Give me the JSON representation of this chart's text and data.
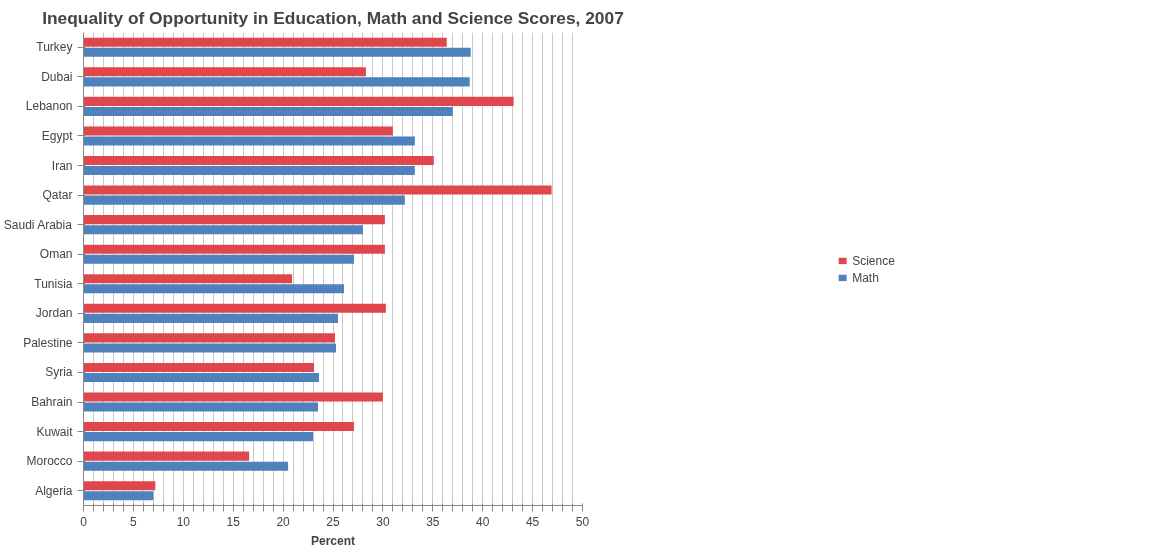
{
  "chart_data": {
    "type": "bar",
    "orientation": "horizontal",
    "title": "Inequality of Opportunity in Education, Math and Science Scores, 2007",
    "xlabel": "Percent",
    "categories": [
      "Turkey",
      "Dubai",
      "Lebanon",
      "Egypt",
      "Iran",
      "Qatar",
      "Saudi Arabia",
      "Oman",
      "Tunisia",
      "Jordan",
      "Palestine",
      "Syria",
      "Bahrain",
      "Kuwait",
      "Morocco",
      "Algeria"
    ],
    "series": [
      {
        "name": "Science",
        "color": "#e0474c",
        "values": [
          36.4,
          28.3,
          43.1,
          31.0,
          35.1,
          46.9,
          30.2,
          30.2,
          20.9,
          30.3,
          25.2,
          23.1,
          30.0,
          27.1,
          16.6,
          7.2
        ]
      },
      {
        "name": "Math",
        "color": "#4f81bd",
        "values": [
          38.8,
          38.7,
          37.0,
          33.2,
          33.2,
          32.2,
          28.0,
          27.1,
          26.1,
          25.5,
          25.3,
          23.6,
          23.5,
          23.0,
          20.5,
          7.0
        ]
      }
    ],
    "xlim": [
      0,
      50
    ],
    "xticks": [
      0,
      {
        "value": 1,
        "label": null
      },
      {
        "value": 2,
        "label": null
      },
      {
        "value": 3,
        "label": null
      },
      {
        "value": 4,
        "label": null
      },
      5,
      {
        "value": 6,
        "label": null
      },
      {
        "value": 7,
        "label": null
      },
      {
        "value": 8,
        "label": null
      },
      {
        "value": 9,
        "label": null
      },
      10,
      {
        "value": 11,
        "label": null
      },
      {
        "value": 12,
        "label": null
      },
      {
        "value": 13,
        "label": null
      },
      {
        "value": 14,
        "label": null
      },
      15,
      {
        "value": 16,
        "label": null
      },
      {
        "value": 17,
        "label": null
      },
      {
        "value": 18,
        "label": null
      },
      {
        "value": 19,
        "label": null
      },
      20,
      {
        "value": 21,
        "label": null
      },
      {
        "value": 22,
        "label": null
      },
      {
        "value": 23,
        "label": null
      },
      {
        "value": 24,
        "label": null
      },
      25,
      {
        "value": 26,
        "label": null
      },
      {
        "value": 27,
        "label": null
      },
      {
        "value": 28,
        "label": null
      },
      {
        "value": 29,
        "label": null
      },
      30,
      {
        "value": 31,
        "label": null
      },
      {
        "value": 32,
        "label": null
      },
      {
        "value": 33,
        "label": null
      },
      {
        "value": 34,
        "label": null
      },
      35,
      {
        "value": 36,
        "label": null
      },
      {
        "value": 37,
        "label": null
      },
      {
        "value": 38,
        "label": null
      },
      {
        "value": 39,
        "label": null
      },
      40,
      {
        "value": 41,
        "label": null
      },
      {
        "value": 42,
        "label": null
      },
      {
        "value": 43,
        "label": null
      },
      {
        "value": 44,
        "label": null
      },
      45,
      {
        "value": 46,
        "label": null
      },
      {
        "value": 47,
        "label": null
      },
      {
        "value": 48,
        "label": null
      },
      {
        "value": 49,
        "label": null
      },
      50
    ],
    "grid": "x",
    "legend": "right"
  }
}
